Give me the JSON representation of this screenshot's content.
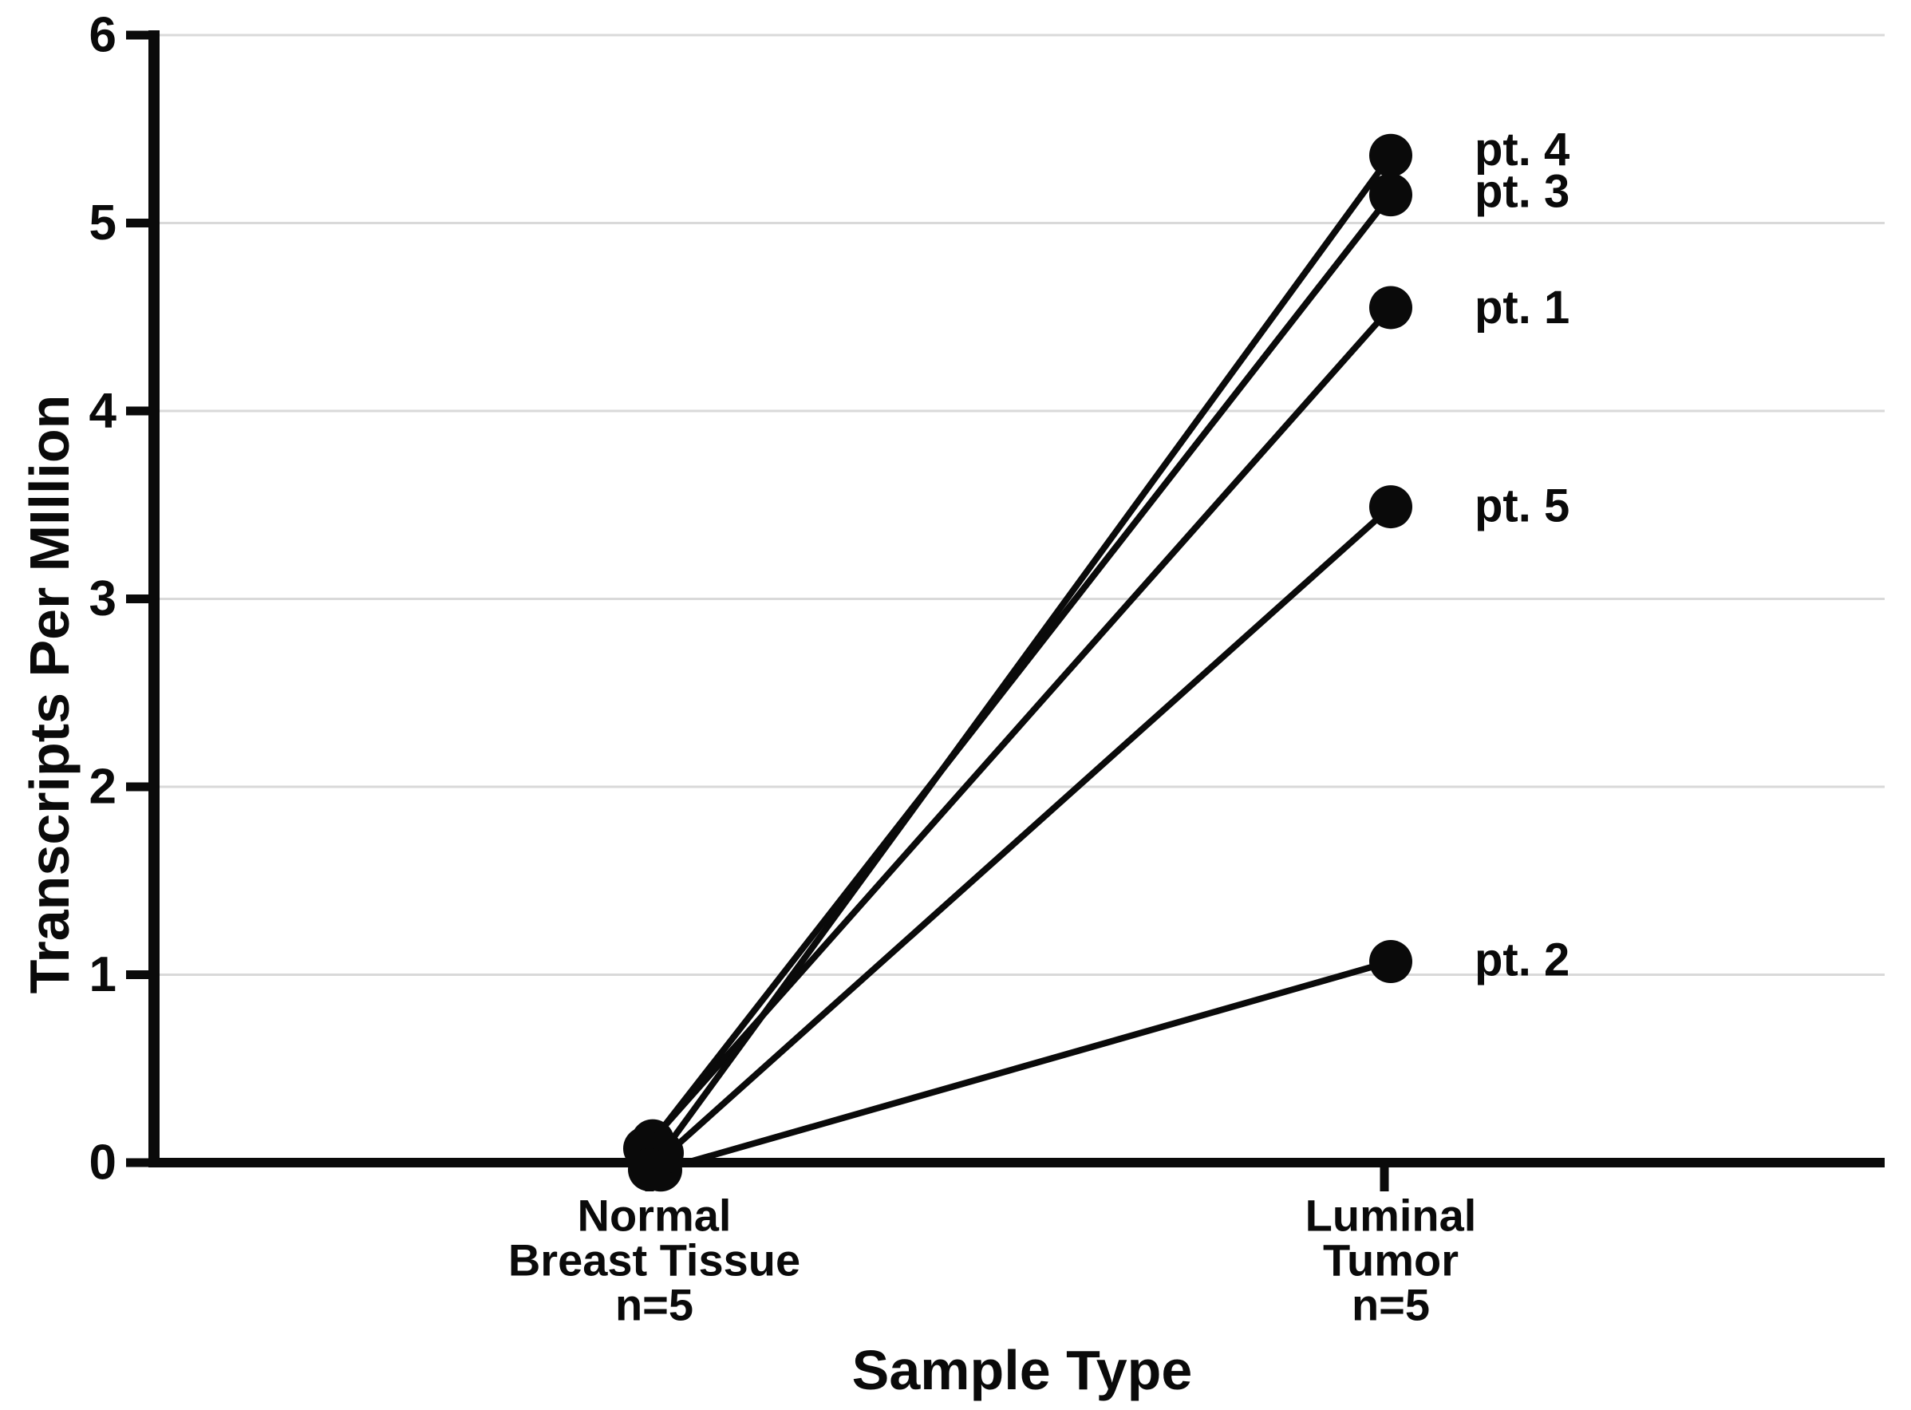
{
  "figure": {
    "background_color": "#ffffff",
    "ink_color": "#0a0a0a",
    "grid_color": "#d9d9d9"
  },
  "chart_data": {
    "type": "line",
    "subtype": "paired-slope",
    "title": "",
    "xlabel": "Sample Type",
    "ylabel": "Transcripts Per MIllion",
    "categories": [
      [
        "Normal",
        "Breast Tissue",
        "n=5"
      ],
      [
        "Luminal",
        "Tumor",
        "n=5"
      ]
    ],
    "y_ticks": [
      0,
      1,
      2,
      3,
      4,
      5,
      6
    ],
    "ylim": [
      0,
      6
    ],
    "grid": "horizontal",
    "legend": "none",
    "marker": "filled-circle",
    "series": [
      {
        "name": "pt. 1",
        "values": [
          0.05,
          4.55
        ]
      },
      {
        "name": "pt. 2",
        "values": [
          0.02,
          1.07
        ]
      },
      {
        "name": "pt. 3",
        "values": [
          0.04,
          5.15
        ]
      },
      {
        "name": "pt. 4",
        "values": [
          0.06,
          5.36
        ]
      },
      {
        "name": "pt. 5",
        "values": [
          0.03,
          3.49
        ]
      }
    ],
    "point_labels_top_to_bottom": [
      "pt. 4",
      "pt. 3",
      "pt. 1",
      "pt. 5",
      "pt. 2"
    ]
  }
}
